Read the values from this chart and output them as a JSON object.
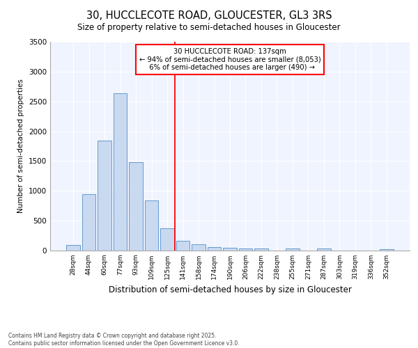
{
  "title": "30, HUCCLECOTE ROAD, GLOUCESTER, GL3 3RS",
  "subtitle": "Size of property relative to semi-detached houses in Gloucester",
  "xlabel": "Distribution of semi-detached houses by size in Gloucester",
  "ylabel": "Number of semi-detached properties",
  "categories": [
    "28sqm",
    "44sqm",
    "60sqm",
    "77sqm",
    "93sqm",
    "109sqm",
    "125sqm",
    "141sqm",
    "158sqm",
    "174sqm",
    "190sqm",
    "206sqm",
    "222sqm",
    "238sqm",
    "255sqm",
    "271sqm",
    "287sqm",
    "303sqm",
    "319sqm",
    "336sqm",
    "352sqm"
  ],
  "values": [
    95,
    950,
    1840,
    2640,
    1480,
    840,
    370,
    160,
    110,
    55,
    45,
    30,
    30,
    0,
    30,
    0,
    30,
    0,
    0,
    0,
    20
  ],
  "bar_color": "#c8d9f0",
  "bar_edge_color": "#6699cc",
  "property_label": "30 HUCCLECOTE ROAD: 137sqm",
  "pct_smaller": 94,
  "count_smaller": 8053,
  "pct_larger": 6,
  "count_larger": 490,
  "vline_x_index": 7,
  "ylim": [
    0,
    3500
  ],
  "yticks": [
    0,
    500,
    1000,
    1500,
    2000,
    2500,
    3000,
    3500
  ],
  "bg_color": "#ffffff",
  "plot_bg_color": "#f0f4ff",
  "grid_color": "#ffffff",
  "footer_line1": "Contains HM Land Registry data © Crown copyright and database right 2025.",
  "footer_line2": "Contains public sector information licensed under the Open Government Licence v3.0."
}
